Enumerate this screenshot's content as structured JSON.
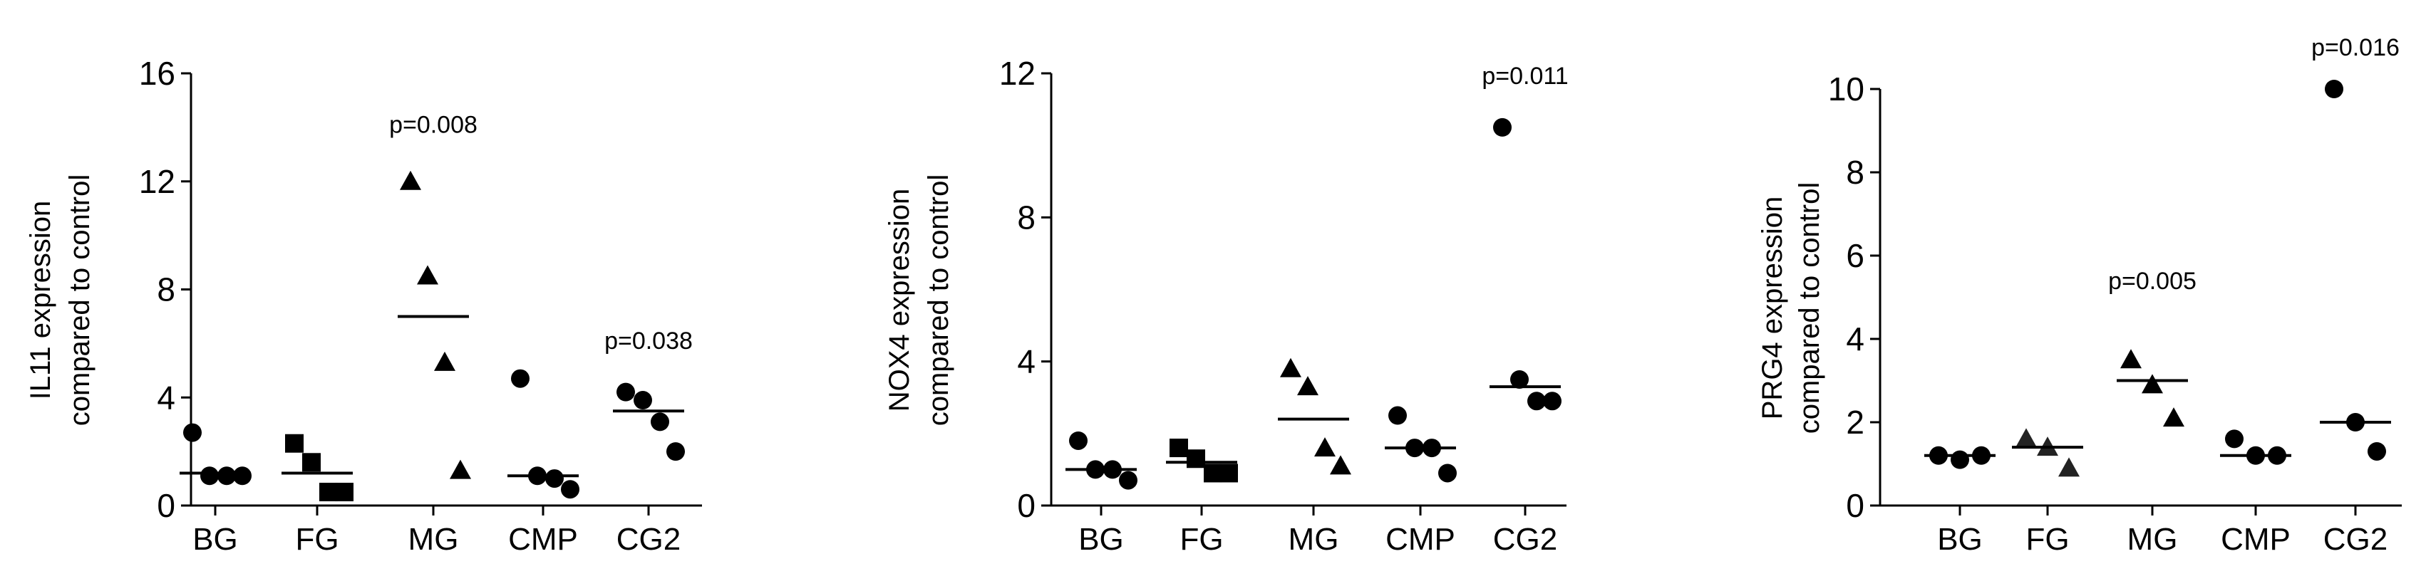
{
  "chart_data": [
    {
      "type": "scatter",
      "title": "",
      "ylabel_lines": [
        "IL11 expression",
        "compared to control"
      ],
      "xlabel": "",
      "categories": [
        "BG",
        "FG",
        "MG",
        "CMP",
        "CG2"
      ],
      "ylim": [
        0,
        16
      ],
      "yticks": [
        0,
        4,
        8,
        12,
        16
      ],
      "marker_shapes": [
        "circle",
        "square",
        "triangle",
        "circle",
        "circle"
      ],
      "groups": [
        {
          "category": "BG",
          "points": [
            2.7,
            1.1,
            1.1,
            1.1
          ],
          "mean": 1.2
        },
        {
          "category": "FG",
          "points": [
            2.3,
            1.6,
            0.5,
            0.5
          ],
          "mean": 1.2
        },
        {
          "category": "MG",
          "points": [
            12.0,
            8.5,
            5.3,
            1.3
          ],
          "mean": 7.0
        },
        {
          "category": "CMP",
          "points": [
            4.7,
            1.1,
            1.0,
            0.6
          ],
          "mean": 1.1
        },
        {
          "category": "CG2",
          "points": [
            4.2,
            3.9,
            3.1,
            2.0
          ],
          "mean": 3.5
        }
      ],
      "annotations": [
        {
          "category": "MG",
          "text": "p=0.008",
          "y": 13.8
        },
        {
          "category": "CG2",
          "text": "p=0.038",
          "y": 5.8
        }
      ]
    },
    {
      "type": "scatter",
      "title": "",
      "ylabel_lines": [
        "NOX4 expression",
        "compared to control"
      ],
      "xlabel": "",
      "categories": [
        "BG",
        "FG",
        "MG",
        "CMP",
        "CG2"
      ],
      "ylim": [
        0,
        12
      ],
      "yticks": [
        0,
        4,
        8,
        12
      ],
      "marker_shapes": [
        "circle",
        "square",
        "triangle",
        "circle",
        "circle"
      ],
      "groups": [
        {
          "category": "BG",
          "points": [
            1.8,
            1.0,
            1.0,
            0.7
          ],
          "mean": 1.0
        },
        {
          "category": "FG",
          "points": [
            1.6,
            1.3,
            0.9,
            0.9
          ],
          "mean": 1.2
        },
        {
          "category": "MG",
          "points": [
            3.8,
            3.3,
            1.6,
            1.1
          ],
          "mean": 2.4
        },
        {
          "category": "CMP",
          "points": [
            2.5,
            1.6,
            1.6,
            0.9
          ],
          "mean": 1.6
        },
        {
          "category": "CG2",
          "points": [
            10.5,
            3.5,
            2.9,
            2.9
          ],
          "mean": 3.3
        }
      ],
      "annotations": [
        {
          "category": "CG2",
          "text": "p=0.011",
          "y": 11.7
        }
      ]
    },
    {
      "type": "scatter",
      "title": "",
      "ylabel_lines": [
        "PRG4 expression",
        "compared to control"
      ],
      "xlabel": "",
      "categories": [
        "BG",
        "FG",
        "MG",
        "CMP",
        "CG2"
      ],
      "ylim": [
        0,
        10
      ],
      "yticks": [
        0,
        2,
        4,
        6,
        8,
        10
      ],
      "marker_shapes": [
        "circle",
        "triangle_grey",
        "triangle",
        "circle",
        "circle"
      ],
      "groups": [
        {
          "category": "BG",
          "points": [
            1.2,
            1.1,
            1.2
          ],
          "mean": 1.2
        },
        {
          "category": "FG",
          "points": [
            1.6,
            1.4,
            0.9
          ],
          "mean": 1.4
        },
        {
          "category": "MG",
          "points": [
            3.5,
            2.9,
            2.1
          ],
          "mean": 3.0
        },
        {
          "category": "CMP",
          "points": [
            1.6,
            1.2,
            1.2
          ],
          "mean": 1.2
        },
        {
          "category": "CG2",
          "points": [
            10.0,
            2.0,
            1.3
          ],
          "mean": 2.0
        }
      ],
      "annotations": [
        {
          "category": "MG",
          "text": "p=0.005",
          "y": 5.2
        },
        {
          "category": "CG2",
          "text": "p=0.016",
          "y": 10.8
        }
      ]
    }
  ],
  "style": {
    "marker_color": "#000000",
    "axis_color": "#000000"
  }
}
